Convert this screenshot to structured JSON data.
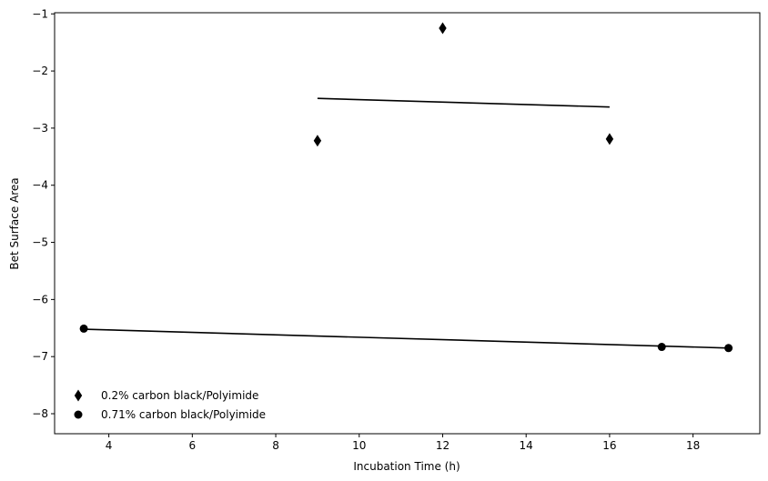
{
  "chart_data": {
    "type": "scatter",
    "xlabel": "Incubation Time (h)",
    "ylabel": "Bet Surface Area",
    "xlim": [
      2.7,
      19.6
    ],
    "ylim": [
      -8.35,
      -0.98
    ],
    "xticks": [
      4,
      6,
      8,
      10,
      12,
      14,
      16,
      18
    ],
    "yticks": [
      -1,
      -2,
      -3,
      -4,
      -5,
      -6,
      -7,
      -8
    ],
    "xtick_labels": [
      "4",
      "6",
      "8",
      "10",
      "12",
      "14",
      "16",
      "18"
    ],
    "ytick_labels": [
      "−1",
      "−2",
      "−3",
      "−4",
      "−5",
      "−6",
      "−7",
      "−8"
    ],
    "grid": false,
    "legend_position": "lower-left",
    "series": [
      {
        "name": "0.2% carbon black/Polyimide",
        "marker": "diamond",
        "color": "#000000",
        "points": [
          [
            9.0,
            -3.22
          ],
          [
            12.0,
            -1.25
          ],
          [
            16.0,
            -3.19
          ]
        ],
        "fit_line": [
          [
            9.0,
            -2.48
          ],
          [
            16.0,
            -2.63
          ]
        ]
      },
      {
        "name": "0.71% carbon black/Polyimide",
        "marker": "circle",
        "color": "#000000",
        "points": [
          [
            3.4,
            -6.51
          ],
          [
            17.25,
            -6.83
          ],
          [
            18.85,
            -6.85
          ]
        ],
        "fit_line": [
          [
            3.4,
            -6.52
          ],
          [
            18.85,
            -6.85
          ]
        ]
      }
    ]
  }
}
